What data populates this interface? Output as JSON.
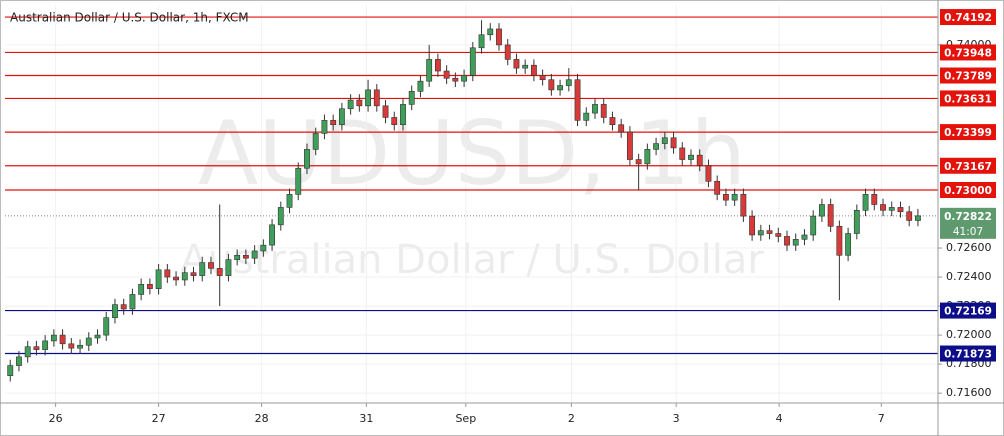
{
  "chart_data": {
    "type": "candlestick",
    "title": "Australian Dollar / U.S. Dollar, 1h, FXCM",
    "watermark": "AUDUSD, 1h",
    "watermark_subtitle": "Australian Dollar / U.S. Dollar",
    "up_color": "#3f9f5a",
    "down_color": "#d83a3a",
    "grid": true,
    "xlim": [
      -0.6,
      106.3
    ],
    "xticks": [
      {
        "value": 5.2,
        "label": "26"
      },
      {
        "value": 17,
        "label": "27"
      },
      {
        "value": 28.8,
        "label": "28"
      },
      {
        "value": 40.8,
        "label": "31"
      },
      {
        "value": 52.2,
        "label": "Sep"
      },
      {
        "value": 64.3,
        "label": "2"
      },
      {
        "value": 76.3,
        "label": "3"
      },
      {
        "value": 88.1,
        "label": "4"
      },
      {
        "value": 99.8,
        "label": "7"
      }
    ],
    "ylim": [
      0.71532,
      0.74275
    ],
    "yticks": [
      {
        "value": 0.716,
        "label": "0.71600"
      },
      {
        "value": 0.718,
        "label": "0.71800"
      },
      {
        "value": 0.72,
        "label": "0.72000"
      },
      {
        "value": 0.722,
        "label": "0.72200"
      },
      {
        "value": 0.724,
        "label": "0.72400"
      },
      {
        "value": 0.726,
        "label": "0.72600"
      },
      {
        "value": 0.74,
        "label": "0.74000"
      }
    ],
    "levels": [
      {
        "value": 0.74192,
        "label": "0.74192",
        "color": "#e3120b"
      },
      {
        "value": 0.73948,
        "label": "0.73948",
        "color": "#e3120b"
      },
      {
        "value": 0.73789,
        "label": "0.73789",
        "color": "#e3120b"
      },
      {
        "value": 0.73631,
        "label": "0.73631",
        "color": "#e3120b"
      },
      {
        "value": 0.73399,
        "label": "0.73399",
        "color": "#e3120b"
      },
      {
        "value": 0.73167,
        "label": "0.73167",
        "color": "#e3120b"
      },
      {
        "value": 0.73,
        "label": "0.73000",
        "color": "#e3120b"
      },
      {
        "value": 0.72169,
        "label": "0.72169",
        "color": "#0d0d8a"
      },
      {
        "value": 0.71873,
        "label": "0.71873",
        "color": "#0d0d8a"
      }
    ],
    "last_price": {
      "value": 0.72822,
      "label": "0.72822",
      "color": "#5e9a6e"
    },
    "countdown": "41:07",
    "open": [
      0.7172,
      0.7179,
      0.7185,
      0.7192,
      0.719,
      0.7196,
      0.72,
      0.7194,
      0.7191,
      0.7193,
      0.7198,
      0.72,
      0.7212,
      0.7221,
      0.7218,
      0.7228,
      0.7235,
      0.7232,
      0.7245,
      0.724,
      0.7238,
      0.7243,
      0.7241,
      0.725,
      0.7246,
      0.7241,
      0.7252,
      0.7255,
      0.7253,
      0.7258,
      0.7262,
      0.7276,
      0.7288,
      0.7297,
      0.7315,
      0.7328,
      0.7339,
      0.7348,
      0.7345,
      0.7356,
      0.7362,
      0.7358,
      0.7369,
      0.7358,
      0.735,
      0.7345,
      0.7359,
      0.7368,
      0.7375,
      0.739,
      0.7382,
      0.7377,
      0.7375,
      0.7379,
      0.7398,
      0.7407,
      0.7411,
      0.74,
      0.739,
      0.7384,
      0.7386,
      0.7379,
      0.7376,
      0.7369,
      0.7372,
      0.7376,
      0.7348,
      0.7353,
      0.7359,
      0.735,
      0.7345,
      0.734,
      0.7321,
      0.7318,
      0.7328,
      0.7332,
      0.7336,
      0.7329,
      0.7321,
      0.7324,
      0.7317,
      0.7306,
      0.7297,
      0.7293,
      0.7297,
      0.7282,
      0.7269,
      0.7272,
      0.727,
      0.7268,
      0.7262,
      0.7266,
      0.7269,
      0.7282,
      0.729,
      0.7275,
      0.7255,
      0.727,
      0.7286,
      0.7297,
      0.729,
      0.7286,
      0.7288,
      0.7285,
      0.7279
    ],
    "high": [
      0.7183,
      0.7189,
      0.7196,
      0.7196,
      0.72,
      0.7204,
      0.7204,
      0.7198,
      0.7197,
      0.7202,
      0.7204,
      0.7216,
      0.7225,
      0.7225,
      0.7232,
      0.7239,
      0.7239,
      0.7249,
      0.7249,
      0.7244,
      0.7247,
      0.7247,
      0.7254,
      0.7254,
      0.729,
      0.7256,
      0.7259,
      0.7259,
      0.7262,
      0.7266,
      0.728,
      0.7292,
      0.7301,
      0.7319,
      0.7332,
      0.7343,
      0.7352,
      0.7352,
      0.736,
      0.7366,
      0.7366,
      0.7376,
      0.7373,
      0.7362,
      0.7354,
      0.7363,
      0.7372,
      0.7379,
      0.74,
      0.7394,
      0.7386,
      0.7381,
      0.7383,
      0.7402,
      0.7417,
      0.7415,
      0.7415,
      0.7404,
      0.7394,
      0.739,
      0.739,
      0.7383,
      0.738,
      0.7376,
      0.7384,
      0.738,
      0.7357,
      0.7363,
      0.7363,
      0.7354,
      0.7349,
      0.7344,
      0.7325,
      0.7332,
      0.7336,
      0.734,
      0.734,
      0.7333,
      0.7328,
      0.7328,
      0.7321,
      0.731,
      0.7301,
      0.7301,
      0.7301,
      0.7286,
      0.7276,
      0.7276,
      0.7274,
      0.7272,
      0.727,
      0.7273,
      0.7286,
      0.7294,
      0.7294,
      0.7279,
      0.7274,
      0.729,
      0.7301,
      0.7301,
      0.7294,
      0.7292,
      0.7292,
      0.7289,
      0.7287
    ],
    "low": [
      0.7168,
      0.7175,
      0.7181,
      0.7186,
      0.7186,
      0.7192,
      0.719,
      0.7187,
      0.7187,
      0.7189,
      0.7194,
      0.7196,
      0.7208,
      0.7214,
      0.7214,
      0.7224,
      0.7228,
      0.7228,
      0.7236,
      0.7234,
      0.7234,
      0.7237,
      0.7237,
      0.7242,
      0.722,
      0.7237,
      0.7248,
      0.7249,
      0.7249,
      0.7254,
      0.7258,
      0.7272,
      0.7284,
      0.7293,
      0.7311,
      0.7324,
      0.7335,
      0.7341,
      0.7341,
      0.7352,
      0.7354,
      0.7354,
      0.7354,
      0.7346,
      0.7341,
      0.7341,
      0.7355,
      0.7364,
      0.7371,
      0.7378,
      0.7373,
      0.7371,
      0.7371,
      0.7375,
      0.7394,
      0.7403,
      0.7396,
      0.7386,
      0.738,
      0.738,
      0.7375,
      0.7372,
      0.7365,
      0.7365,
      0.7368,
      0.7344,
      0.7344,
      0.7349,
      0.7346,
      0.7341,
      0.7336,
      0.7317,
      0.73,
      0.7314,
      0.7324,
      0.7328,
      0.7325,
      0.7317,
      0.7317,
      0.7313,
      0.7302,
      0.7293,
      0.7289,
      0.7289,
      0.7278,
      0.7265,
      0.7265,
      0.7266,
      0.7264,
      0.7258,
      0.7258,
      0.7262,
      0.7265,
      0.7278,
      0.7271,
      0.7224,
      0.7251,
      0.7266,
      0.7282,
      0.7286,
      0.7282,
      0.7282,
      0.7281,
      0.7275,
      0.7275
    ],
    "close": [
      0.7179,
      0.7185,
      0.7192,
      0.719,
      0.7196,
      0.72,
      0.7194,
      0.7191,
      0.7193,
      0.7198,
      0.72,
      0.7212,
      0.7221,
      0.7218,
      0.7228,
      0.7235,
      0.7232,
      0.7245,
      0.724,
      0.7238,
      0.7243,
      0.7241,
      0.725,
      0.7246,
      0.7241,
      0.7252,
      0.7255,
      0.7253,
      0.7258,
      0.7262,
      0.7276,
      0.7288,
      0.7297,
      0.7315,
      0.7328,
      0.7339,
      0.7348,
      0.7345,
      0.7356,
      0.7362,
      0.7358,
      0.7369,
      0.7358,
      0.735,
      0.7345,
      0.7359,
      0.7368,
      0.7375,
      0.739,
      0.7382,
      0.7377,
      0.7375,
      0.7379,
      0.7398,
      0.7407,
      0.7411,
      0.74,
      0.739,
      0.7384,
      0.7386,
      0.7379,
      0.7376,
      0.7369,
      0.7372,
      0.7376,
      0.7348,
      0.7353,
      0.7359,
      0.735,
      0.7345,
      0.734,
      0.7321,
      0.7318,
      0.7328,
      0.7332,
      0.7336,
      0.7329,
      0.7321,
      0.7324,
      0.7317,
      0.7306,
      0.7297,
      0.7293,
      0.7297,
      0.7282,
      0.7269,
      0.7272,
      0.727,
      0.7268,
      0.7262,
      0.7266,
      0.7269,
      0.7282,
      0.729,
      0.7275,
      0.7255,
      0.727,
      0.7286,
      0.7297,
      0.729,
      0.7286,
      0.7288,
      0.7285,
      0.7279,
      0.72822
    ]
  }
}
